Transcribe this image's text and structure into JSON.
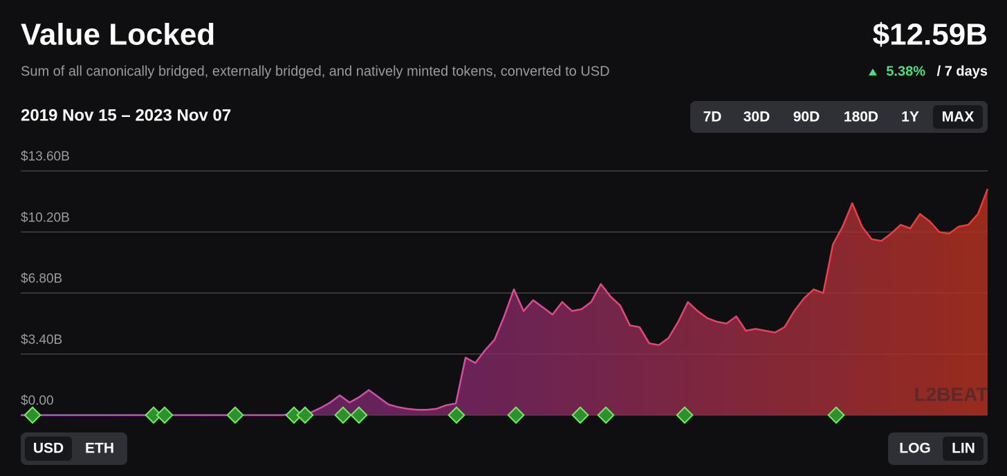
{
  "header": {
    "title": "Value Locked",
    "subtitle": "Sum of all canonically bridged, externally bridged, and natively minted tokens, converted to USD",
    "total": "$12.59B",
    "change": "5.38%",
    "change_period": "/ 7 days",
    "date_range": "2019 Nov 15 – 2023 Nov 07"
  },
  "controls": {
    "ranges": [
      "7D",
      "30D",
      "90D",
      "180D",
      "1Y",
      "MAX"
    ],
    "units": [
      "USD",
      "ETH"
    ],
    "scales": [
      "LOG",
      "LIN"
    ]
  },
  "watermark": "L2BEAT",
  "chart_data": {
    "type": "area",
    "ylim": [
      0,
      13.6
    ],
    "yticks": [
      {
        "value": 0,
        "label": "$0.00"
      },
      {
        "value": 3.4,
        "label": "$3.40B"
      },
      {
        "value": 6.8,
        "label": "$6.80B"
      },
      {
        "value": 10.2,
        "label": "$10.20B"
      },
      {
        "value": 13.6,
        "label": "$13.60B"
      }
    ],
    "grid": true,
    "values": [
      0,
      0,
      0,
      0,
      0,
      0,
      0,
      0,
      0,
      0,
      0,
      0,
      0,
      0,
      0,
      0,
      0,
      0,
      0,
      0,
      0,
      0,
      0,
      0,
      0,
      0,
      0,
      0,
      0.05,
      0.1,
      0.15,
      0.4,
      0.7,
      1.1,
      0.7,
      1.0,
      1.4,
      1.0,
      0.6,
      0.45,
      0.35,
      0.3,
      0.3,
      0.35,
      0.55,
      0.65,
      3.2,
      2.9,
      3.6,
      4.2,
      5.5,
      7.0,
      5.8,
      6.4,
      6.0,
      5.6,
      6.3,
      5.8,
      5.9,
      6.3,
      7.3,
      6.6,
      6.1,
      5.0,
      4.9,
      4.0,
      3.9,
      4.3,
      5.2,
      6.3,
      5.8,
      5.4,
      5.2,
      5.1,
      5.5,
      4.7,
      4.8,
      4.7,
      4.6,
      4.9,
      5.8,
      6.5,
      7.0,
      6.8,
      9.5,
      10.5,
      11.8,
      10.5,
      9.8,
      9.7,
      10.1,
      10.6,
      10.4,
      11.2,
      10.8,
      10.2,
      10.1,
      10.5,
      10.6,
      11.2,
      12.6
    ]
  }
}
